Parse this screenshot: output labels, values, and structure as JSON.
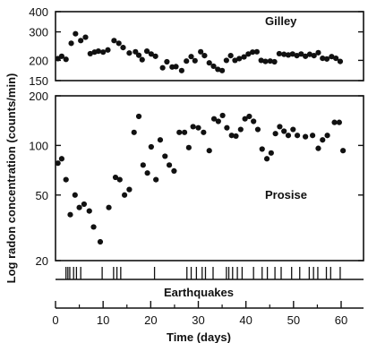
{
  "chart_data": [
    {
      "type": "scatter",
      "panel": "upper",
      "label": "Gilley",
      "ylim": [
        150,
        400
      ],
      "yscale": "log",
      "yticks": [
        "400",
        "300",
        "200",
        "150"
      ],
      "xlim": [
        -1,
        65
      ],
      "points": [
        [
          0.5,
          205
        ],
        [
          1.3,
          212
        ],
        [
          2.2,
          203
        ],
        [
          3.3,
          255
        ],
        [
          4.2,
          292
        ],
        [
          5.3,
          265
        ],
        [
          6.3,
          278
        ],
        [
          7.3,
          220
        ],
        [
          8.2,
          225
        ],
        [
          9.0,
          228
        ],
        [
          10.0,
          225
        ],
        [
          11.0,
          232
        ],
        [
          12.3,
          265
        ],
        [
          13.3,
          255
        ],
        [
          14.2,
          240
        ],
        [
          15.5,
          222
        ],
        [
          16.8,
          226
        ],
        [
          17.5,
          215
        ],
        [
          18.2,
          202
        ],
        [
          19.2,
          228
        ],
        [
          20.1,
          219
        ],
        [
          21.0,
          212
        ],
        [
          22.5,
          180
        ],
        [
          23.4,
          196
        ],
        [
          24.5,
          182
        ],
        [
          25.3,
          183
        ],
        [
          26.5,
          173
        ],
        [
          27.5,
          198
        ],
        [
          28.5,
          211
        ],
        [
          29.3,
          199
        ],
        [
          30.5,
          226
        ],
        [
          31.3,
          214
        ],
        [
          32.3,
          193
        ],
        [
          33.2,
          184
        ],
        [
          34.1,
          176
        ],
        [
          35.0,
          173
        ],
        [
          35.9,
          200
        ],
        [
          36.8,
          214
        ],
        [
          37.7,
          200
        ],
        [
          38.6,
          205
        ],
        [
          39.6,
          210
        ],
        [
          40.5,
          219
        ],
        [
          41.4,
          225
        ],
        [
          42.3,
          226
        ],
        [
          43.2,
          200
        ],
        [
          44.1,
          197
        ],
        [
          45.1,
          198
        ],
        [
          46.0,
          196
        ],
        [
          47.0,
          220
        ],
        [
          48.0,
          218
        ],
        [
          48.9,
          216
        ],
        [
          49.8,
          219
        ],
        [
          50.7,
          214
        ],
        [
          51.6,
          219
        ],
        [
          52.5,
          212
        ],
        [
          53.4,
          218
        ],
        [
          54.3,
          214
        ],
        [
          55.2,
          223
        ],
        [
          56.1,
          206
        ],
        [
          57.0,
          204
        ],
        [
          58.0,
          211
        ],
        [
          58.9,
          206
        ],
        [
          59.8,
          197
        ]
      ]
    },
    {
      "type": "scatter",
      "panel": "lower",
      "label": "Prosise",
      "ylim": [
        20,
        200
      ],
      "yscale": "log",
      "yticks": [
        "200",
        "100",
        "50",
        "20"
      ],
      "xlim": [
        -1,
        65
      ],
      "points": [
        [
          0.5,
          78
        ],
        [
          1.3,
          83
        ],
        [
          2.2,
          62
        ],
        [
          3.1,
          38
        ],
        [
          4.1,
          50
        ],
        [
          5.0,
          42
        ],
        [
          6.0,
          44
        ],
        [
          7.1,
          40
        ],
        [
          8.0,
          32
        ],
        [
          9.4,
          26
        ],
        [
          11.2,
          42
        ],
        [
          12.6,
          64
        ],
        [
          13.5,
          62
        ],
        [
          14.5,
          50
        ],
        [
          15.5,
          54
        ],
        [
          16.5,
          120
        ],
        [
          17.5,
          150
        ],
        [
          18.4,
          76
        ],
        [
          19.3,
          68
        ],
        [
          20.1,
          98
        ],
        [
          21.1,
          62
        ],
        [
          22.0,
          108
        ],
        [
          23.0,
          86
        ],
        [
          23.9,
          76
        ],
        [
          24.9,
          70
        ],
        [
          26.0,
          120
        ],
        [
          27.1,
          120
        ],
        [
          28.0,
          97
        ],
        [
          28.9,
          130
        ],
        [
          30.0,
          128
        ],
        [
          31.1,
          120
        ],
        [
          32.3,
          93
        ],
        [
          33.3,
          145
        ],
        [
          34.2,
          140
        ],
        [
          35.1,
          152
        ],
        [
          36.0,
          128
        ],
        [
          37.0,
          115
        ],
        [
          37.9,
          114
        ],
        [
          38.9,
          125
        ],
        [
          39.8,
          145
        ],
        [
          40.7,
          150
        ],
        [
          41.6,
          140
        ],
        [
          42.5,
          125
        ],
        [
          43.4,
          95
        ],
        [
          44.4,
          83
        ],
        [
          45.3,
          90
        ],
        [
          46.2,
          118
        ],
        [
          47.1,
          130
        ],
        [
          48.0,
          122
        ],
        [
          48.9,
          115
        ],
        [
          49.9,
          125
        ],
        [
          50.8,
          115
        ],
        [
          52.5,
          113
        ],
        [
          54.0,
          115
        ],
        [
          55.2,
          96
        ],
        [
          56.1,
          108
        ],
        [
          57.1,
          115
        ],
        [
          58.6,
          138
        ],
        [
          59.6,
          138
        ],
        [
          60.4,
          93
        ]
      ]
    },
    {
      "type": "event-ticks",
      "label": "Earthquakes",
      "times": [
        2.2,
        2.6,
        3.0,
        3.8,
        4.4,
        5.3,
        9.8,
        12.2,
        12.9,
        13.7,
        20.8,
        27.6,
        28.5,
        29.6,
        30.8,
        31.5,
        33.1,
        35.9,
        36.4,
        37.2,
        38.2,
        39.2,
        41.6,
        43.4,
        44.5,
        46.1,
        47.4,
        49.6,
        51.3,
        53.3,
        54.2,
        55.1,
        56.9,
        57.8,
        59.8
      ]
    }
  ],
  "y_axis_title": "Log radon concentration (counts/min)",
  "x_axis_title": "Time (days)",
  "x_ticks": [
    "0",
    "10",
    "20",
    "30",
    "40",
    "50",
    "60"
  ]
}
